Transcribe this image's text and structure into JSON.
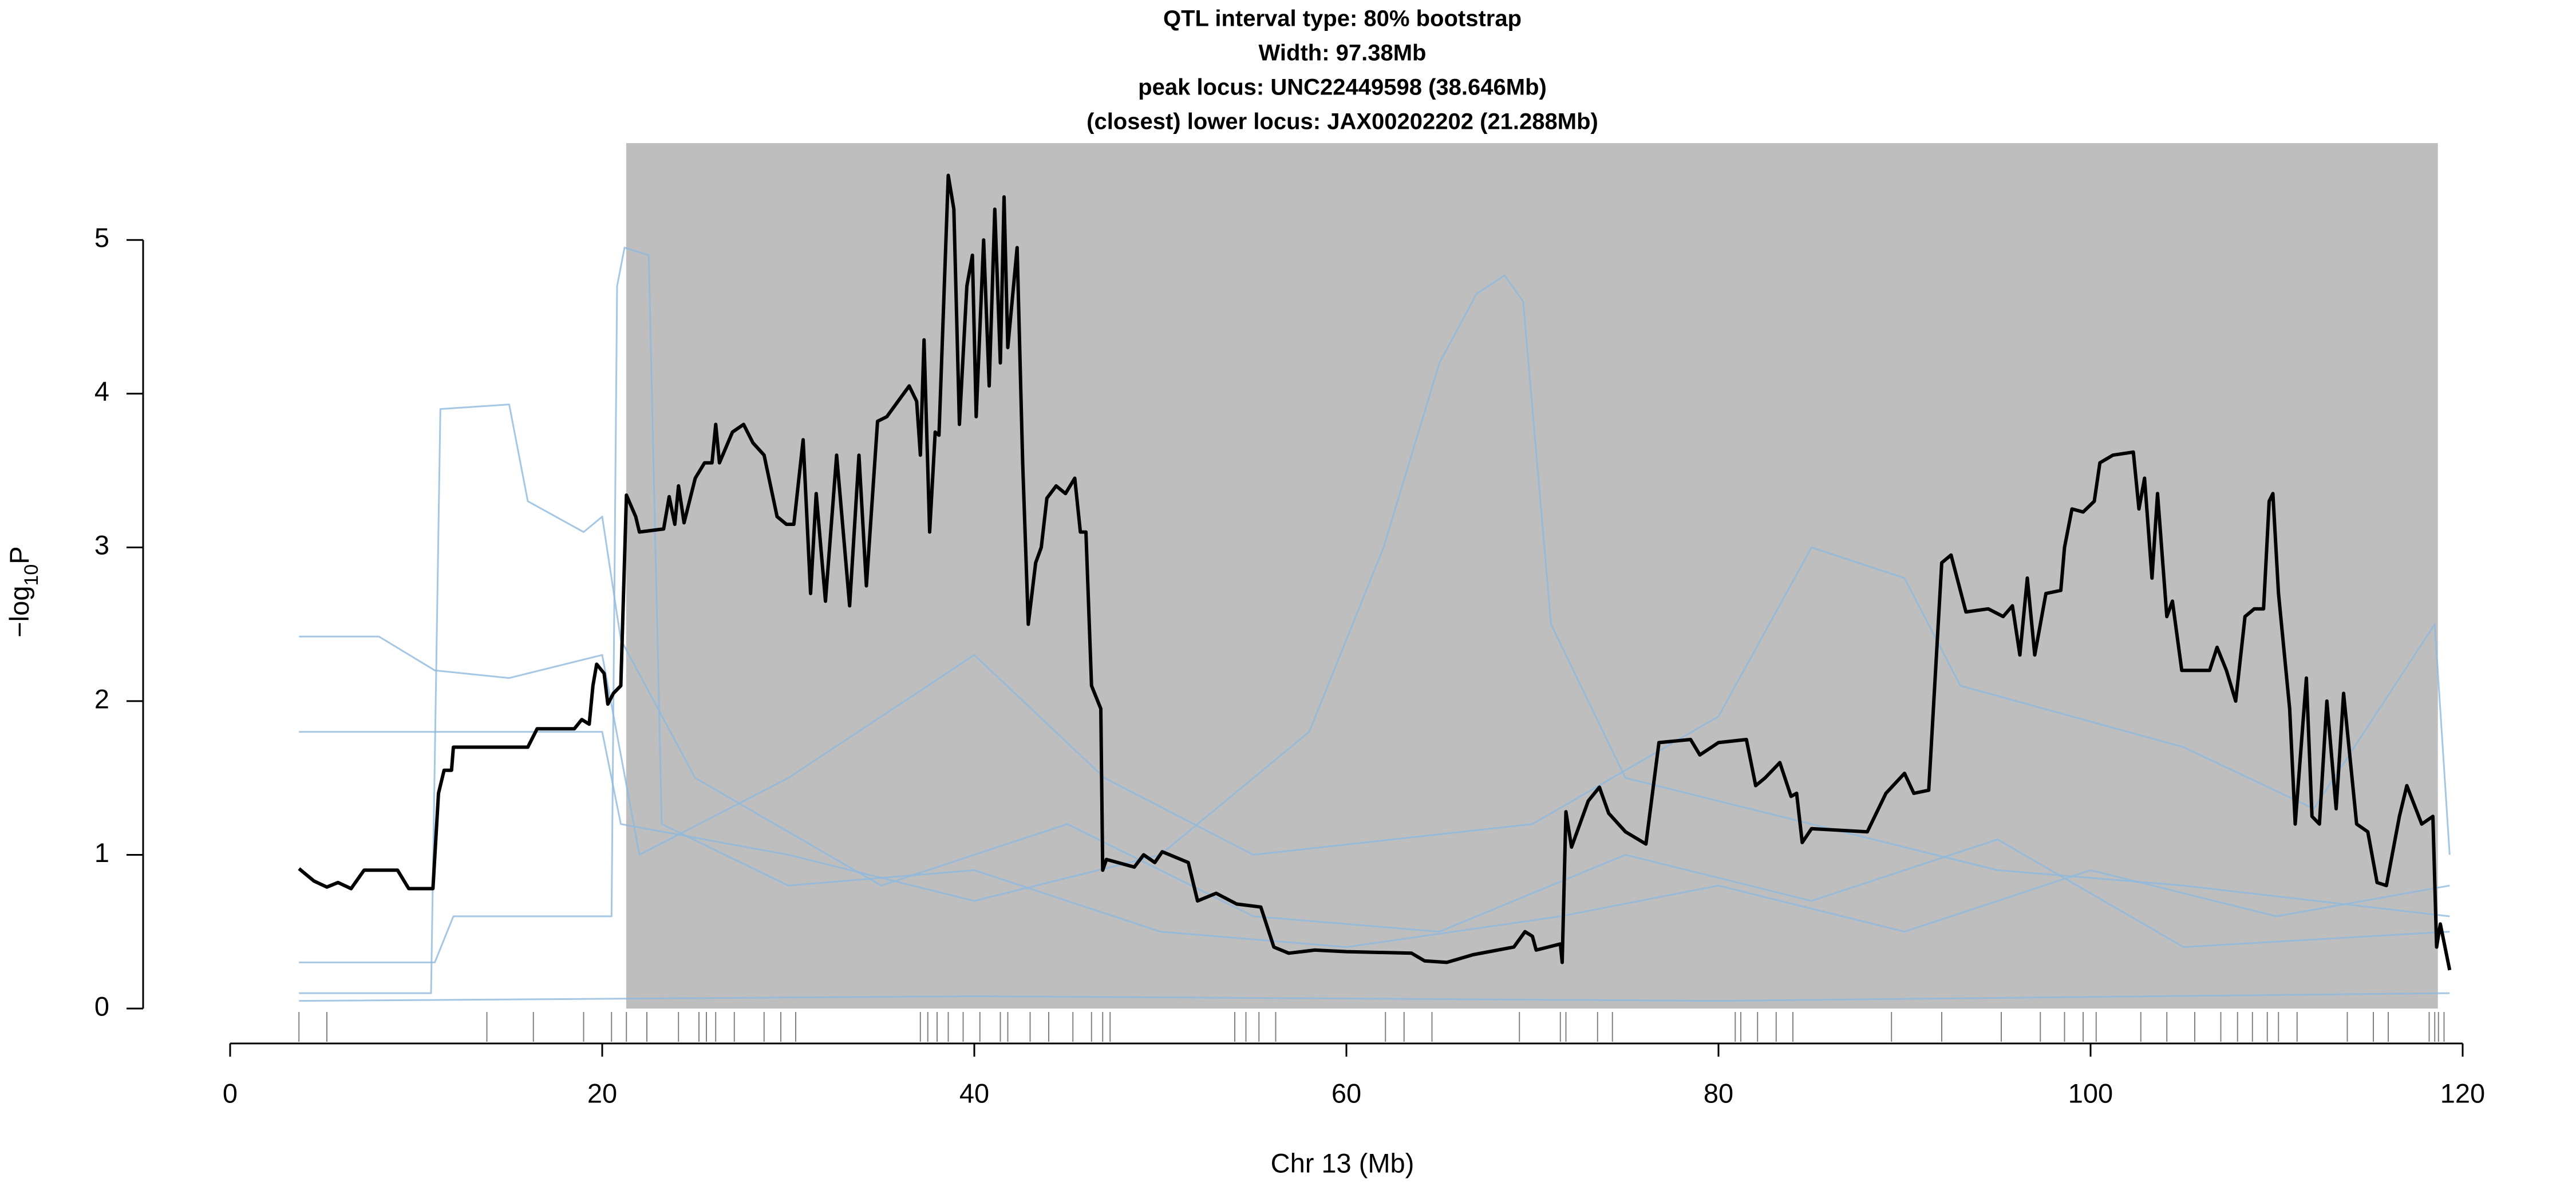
{
  "chart_data": {
    "type": "line",
    "title": [
      "QTL interval type: 80% bootstrap",
      "Width: 97.38Mb",
      "peak locus: UNC22449598 (38.646Mb)",
      "(closest) lower locus: JAX00202202 (21.288Mb)"
    ],
    "x_label": "Chr 13 (Mb)",
    "y_label": [
      "−log",
      "10",
      "P"
    ],
    "xlim": [
      0,
      120
    ],
    "xticks": [
      0,
      20,
      40,
      60,
      80,
      100,
      120
    ],
    "ylim": [
      0,
      5.63
    ],
    "yticks": [
      0,
      1,
      2,
      3,
      4,
      5
    ],
    "interval": [
      21.288,
      118.668
    ],
    "interval_color": "#bebebe",
    "rug": [
      3.7,
      5.2,
      13.8,
      16.3,
      19,
      20.5,
      21.3,
      22.4,
      24.1,
      25.2,
      25.6,
      26.1,
      27.1,
      28.7,
      29.6,
      30.4,
      37.1,
      37.5,
      38.0,
      38.6,
      39.4,
      40.3,
      41.4,
      41.8,
      43.0,
      44.0,
      45.3,
      46.3,
      46.9,
      47.3,
      54.0,
      54.6,
      55.3,
      56.2,
      62.1,
      63.1,
      64.6,
      69.3,
      71.5,
      71.8,
      73.5,
      74.3,
      80.9,
      81.2,
      82.1,
      83.1,
      84.0,
      89.3,
      92.0,
      95.2,
      97.3,
      98.6,
      99.6,
      100.3,
      102.7,
      104.1,
      105.6,
      107.0,
      107.9,
      108.7,
      109.5,
      110.1,
      111.1,
      113.8,
      115.2,
      116.0,
      118.2,
      118.5,
      118.7,
      119.0
    ],
    "rug_color": "#808080",
    "series": [
      {
        "color": "#8fb9dc",
        "x": [
          3.7,
          11,
          12,
          20.5,
          20.8,
          21.2,
          22.5,
          23.2,
          30,
          40,
          50,
          60,
          71.5,
          80,
          90,
          100,
          110,
          119.3
        ],
        "values": [
          0.3,
          0.3,
          0.6,
          0.6,
          4.7,
          4.95,
          4.9,
          1.2,
          0.8,
          0.9,
          0.5,
          0.4,
          0.6,
          0.8,
          0.5,
          0.9,
          0.6,
          0.8
        ]
      },
      {
        "color": "#8fb9dc",
        "x": [
          3.7,
          10.8,
          11.3,
          15,
          16,
          19,
          20,
          21,
          25,
          35,
          45,
          55,
          65,
          75,
          85,
          95,
          105,
          119.3
        ],
        "values": [
          0.1,
          0.1,
          3.9,
          3.93,
          3.3,
          3.1,
          3.2,
          2.4,
          1.5,
          0.8,
          1.2,
          0.6,
          0.5,
          1.0,
          0.7,
          1.1,
          0.4,
          0.5
        ]
      },
      {
        "color": "#8fb9dc",
        "x": [
          3.7,
          20,
          21,
          30,
          40,
          50,
          58,
          62,
          65,
          67,
          68.5,
          69.5,
          71,
          75,
          85,
          95,
          105,
          119.3
        ],
        "values": [
          1.8,
          1.8,
          1.2,
          1.0,
          0.7,
          1.0,
          1.8,
          3.0,
          4.2,
          4.65,
          4.77,
          4.6,
          2.5,
          1.5,
          1.2,
          0.9,
          0.8,
          0.6
        ]
      },
      {
        "color": "#8fb9dc",
        "x": [
          3.7,
          8,
          11,
          15,
          20,
          22,
          30,
          40,
          47,
          55,
          70,
          80,
          85,
          90,
          93,
          105,
          112,
          118.5,
          119.3
        ],
        "values": [
          2.42,
          2.42,
          2.2,
          2.15,
          2.3,
          1.0,
          1.5,
          2.3,
          1.5,
          1.0,
          1.2,
          1.9,
          3.0,
          2.8,
          2.1,
          1.7,
          1.3,
          2.5,
          1.0
        ]
      },
      {
        "color": "#8fb9dc",
        "x": [
          3.7,
          40,
          80,
          119.3
        ],
        "values": [
          0.05,
          0.08,
          0.05,
          0.1
        ]
      },
      {
        "color": "#000000",
        "x": [
          3.7,
          4.5,
          5.2,
          5.8,
          6.5,
          7.2,
          9,
          9.6,
          10.9,
          11.2,
          11.5,
          11.9,
          12.0,
          16,
          16.5,
          18.5,
          18.9,
          19.3,
          19.5,
          19.7,
          20.1,
          20.3,
          20.6,
          21.0,
          21.3,
          21.8,
          22.0,
          23.3,
          23.6,
          23.9,
          24.1,
          24.4,
          25.0,
          25.5,
          25.9,
          26.1,
          26.3,
          27,
          27.6,
          28.1,
          28.7,
          29.4,
          29.9,
          30.3,
          30.8,
          31.2,
          31.5,
          32,
          32.6,
          33.3,
          33.8,
          34.2,
          34.8,
          35.3,
          35.9,
          36.5,
          36.9,
          37.1,
          37.3,
          37.6,
          37.9,
          38.1,
          38.6,
          38.9,
          39.2,
          39.6,
          39.9,
          40.1,
          40.5,
          40.8,
          41.1,
          41.4,
          41.6,
          41.8,
          42.3,
          42.6,
          42.9,
          43.3,
          43.6,
          43.9,
          44.4,
          44.9,
          45.4,
          45.7,
          46,
          46.3,
          46.8,
          46.9,
          47.1,
          48.6,
          49.1,
          49.7,
          50.1,
          51.5,
          52,
          53,
          54.1,
          55.4,
          56.1,
          56.9,
          58.3,
          60,
          63.5,
          64.2,
          65.4,
          66.8,
          69,
          69.6,
          70.0,
          70.2,
          71.5,
          71.6,
          71.8,
          72.1,
          73.0,
          73.6,
          74.1,
          75,
          76.1,
          76.8,
          78.5,
          79,
          80,
          81.5,
          82.0,
          82.5,
          83.3,
          83.9,
          84.2,
          84.5,
          85,
          88.0,
          89.0,
          90.0,
          90.5,
          91.3,
          92.0,
          92.5,
          93.3,
          94.5,
          95.3,
          95.8,
          96.2,
          96.6,
          97.0,
          97.6,
          98.4,
          98.6,
          99.0,
          99.6,
          100.2,
          100.5,
          101.2,
          102.3,
          102.6,
          102.9,
          103.3,
          103.6,
          104.1,
          104.4,
          104.9,
          105.6,
          106.4,
          106.8,
          107.3,
          107.8,
          108.3,
          108.8,
          109.3,
          109.6,
          109.8,
          110.1,
          110.7,
          111.0,
          111.6,
          111.9,
          112.3,
          112.7,
          113.2,
          113.6,
          114.3,
          114.9,
          115.4,
          115.9,
          116.6,
          117.0,
          117.8,
          118.4,
          118.6,
          118.8,
          119.3
        ],
        "values": [
          0.91,
          0.83,
          0.79,
          0.82,
          0.78,
          0.9,
          0.9,
          0.78,
          0.78,
          1.4,
          1.55,
          1.55,
          1.7,
          1.7,
          1.82,
          1.82,
          1.88,
          1.85,
          2.1,
          2.24,
          2.18,
          1.98,
          2.05,
          2.1,
          3.34,
          3.2,
          3.1,
          3.12,
          3.33,
          3.15,
          3.4,
          3.16,
          3.45,
          3.55,
          3.55,
          3.8,
          3.55,
          3.75,
          3.8,
          3.68,
          3.6,
          3.2,
          3.15,
          3.15,
          3.7,
          2.7,
          3.35,
          2.65,
          3.6,
          2.62,
          3.6,
          2.75,
          3.82,
          3.85,
          3.95,
          4.05,
          3.95,
          3.6,
          4.35,
          3.1,
          3.75,
          3.73,
          5.42,
          5.2,
          3.8,
          4.7,
          4.9,
          3.85,
          5.0,
          4.05,
          5.2,
          4.2,
          5.28,
          4.3,
          4.95,
          3.55,
          2.5,
          2.9,
          3.0,
          3.32,
          3.4,
          3.35,
          3.45,
          3.1,
          3.1,
          2.1,
          1.95,
          0.9,
          0.97,
          0.92,
          1.0,
          0.95,
          1.02,
          0.95,
          0.7,
          0.75,
          0.68,
          0.66,
          0.4,
          0.36,
          0.38,
          0.37,
          0.36,
          0.31,
          0.3,
          0.35,
          0.4,
          0.5,
          0.47,
          0.38,
          0.42,
          0.3,
          1.28,
          1.05,
          1.35,
          1.44,
          1.27,
          1.15,
          1.07,
          1.73,
          1.75,
          1.65,
          1.73,
          1.75,
          1.45,
          1.5,
          1.6,
          1.38,
          1.4,
          1.08,
          1.17,
          1.15,
          1.4,
          1.53,
          1.4,
          1.42,
          2.9,
          2.95,
          2.58,
          2.6,
          2.55,
          2.62,
          2.3,
          2.8,
          2.3,
          2.7,
          2.72,
          3.0,
          3.25,
          3.23,
          3.3,
          3.55,
          3.6,
          3.62,
          3.25,
          3.45,
          2.8,
          3.35,
          2.55,
          2.65,
          2.2,
          2.2,
          2.2,
          2.35,
          2.2,
          2.0,
          2.55,
          2.6,
          2.6,
          3.3,
          3.35,
          2.7,
          1.95,
          1.2,
          2.15,
          1.25,
          1.2,
          2.0,
          1.3,
          2.05,
          1.2,
          1.15,
          0.82,
          0.8,
          1.25,
          1.45,
          1.2,
          1.25,
          0.4,
          0.55,
          0.25
        ]
      }
    ]
  }
}
